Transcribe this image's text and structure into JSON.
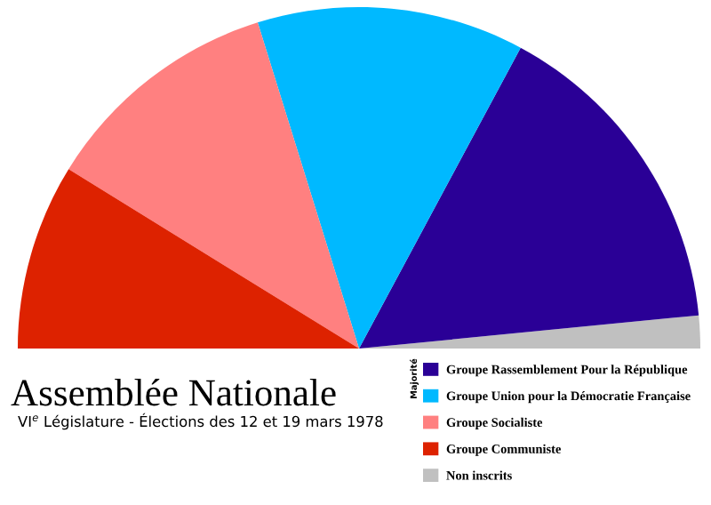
{
  "chart_data": {
    "type": "pie",
    "title": "Assemblée Nationale",
    "subtitle": "VI$^{e}$ Législature - Élections des 12 et 19 mars 1978",
    "categories": [
      "Groupe Rassemblement Pour la République",
      "Groupe Union pour la Démocratie Française",
      "Groupe Socialiste",
      "Groupe Communiste",
      "Non inscrits"
    ],
    "values": [
      31.2,
      25.3,
      22.8,
      17.6,
      3.1
    ],
    "colors": [
      "#2a0096",
      "#00b9ff",
      "#ff8080",
      "#dd2200",
      "#c0c0c0"
    ],
    "annotations": [
      "Majorité"
    ],
    "legend": "bottom right"
  }
}
